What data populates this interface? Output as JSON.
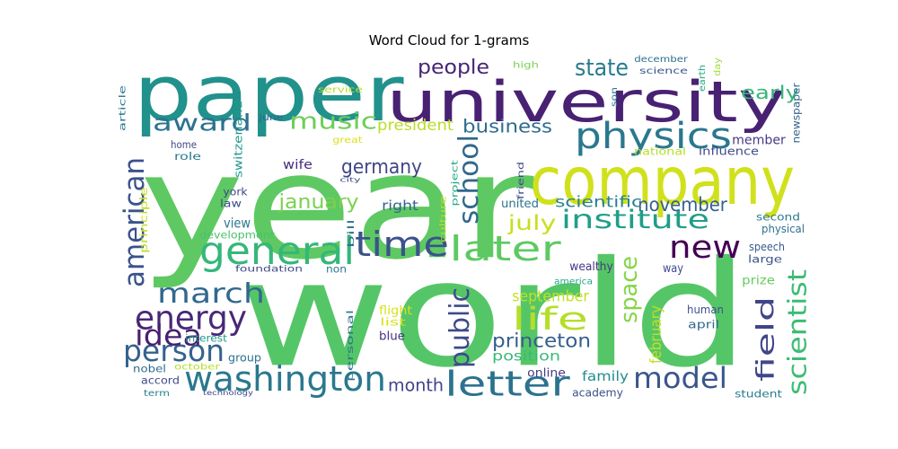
{
  "chart_data": {
    "type": "wordcloud",
    "title": "Word Cloud for 1-grams",
    "colormap": "viridis",
    "background": "#ffffff",
    "words": [
      {
        "text": "year",
        "color": "#5ec962"
      },
      {
        "text": "world",
        "color": "#55c667"
      },
      {
        "text": "paper",
        "color": "#21918c"
      },
      {
        "text": "university",
        "color": "#482173"
      },
      {
        "text": "company",
        "color": "#d0e11c"
      },
      {
        "text": "physics",
        "color": "#2a788e"
      },
      {
        "text": "time",
        "color": "#3b528b"
      },
      {
        "text": "general",
        "color": "#35b779"
      },
      {
        "text": "later",
        "color": "#5ec962"
      },
      {
        "text": "washington",
        "color": "#2a788e"
      },
      {
        "text": "letter",
        "color": "#2c728e"
      },
      {
        "text": "new",
        "color": "#440154"
      },
      {
        "text": "institute",
        "color": "#1f9e89"
      },
      {
        "text": "state",
        "color": "#287c8e"
      },
      {
        "text": "life",
        "color": "#b5de2b"
      },
      {
        "text": "energy",
        "color": "#482878"
      },
      {
        "text": "march",
        "color": "#31688e"
      },
      {
        "text": "model",
        "color": "#39568c"
      },
      {
        "text": "field",
        "color": "#404688"
      },
      {
        "text": "scientist",
        "color": "#3dbc74"
      },
      {
        "text": "person",
        "color": "#33638d"
      },
      {
        "text": "idea",
        "color": "#481f70"
      },
      {
        "text": "public",
        "color": "#3e4a89"
      },
      {
        "text": "music",
        "color": "#6ece58"
      },
      {
        "text": "award",
        "color": "#2c728e"
      },
      {
        "text": "american",
        "color": "#3b528b"
      },
      {
        "text": "july",
        "color": "#c8e020"
      },
      {
        "text": "school",
        "color": "#31688e"
      },
      {
        "text": "space",
        "color": "#86d549"
      },
      {
        "text": "early",
        "color": "#35b779"
      },
      {
        "text": "people",
        "color": "#482475"
      },
      {
        "text": "germany",
        "color": "#3f4788"
      },
      {
        "text": "january",
        "color": "#7ad151"
      },
      {
        "text": "november",
        "color": "#34608d"
      },
      {
        "text": "business",
        "color": "#2f6c8e"
      },
      {
        "text": "princeton",
        "color": "#355f8d"
      },
      {
        "text": "month",
        "color": "#414487"
      },
      {
        "text": "february",
        "color": "#c2df23"
      },
      {
        "text": "president",
        "color": "#b8de29"
      },
      {
        "text": "scientific",
        "color": "#27808e"
      },
      {
        "text": "september",
        "color": "#c2df23"
      },
      {
        "text": "member",
        "color": "#443983"
      },
      {
        "text": "blue",
        "color": "#46327e"
      },
      {
        "text": "view",
        "color": "#2a788e"
      },
      {
        "text": "right",
        "color": "#33638d"
      },
      {
        "text": "wife",
        "color": "#472d7b"
      },
      {
        "text": "position",
        "color": "#38b977"
      },
      {
        "text": "flight",
        "color": "#d8e219"
      },
      {
        "text": "family",
        "color": "#218f8d"
      },
      {
        "text": "united",
        "color": "#2c728e"
      },
      {
        "text": "second",
        "color": "#2a788e"
      },
      {
        "text": "physical",
        "color": "#2c728e"
      },
      {
        "text": "speech",
        "color": "#38598c"
      },
      {
        "text": "large",
        "color": "#3b528b"
      },
      {
        "text": "prize",
        "color": "#65cb5e"
      },
      {
        "text": "human",
        "color": "#3b528b"
      },
      {
        "text": "april",
        "color": "#31688e"
      },
      {
        "text": "academy",
        "color": "#3b528b"
      },
      {
        "text": "student",
        "color": "#287c8e"
      },
      {
        "text": "online",
        "color": "#443a83"
      },
      {
        "text": "america",
        "color": "#22a785"
      },
      {
        "text": "wealthy",
        "color": "#453781"
      },
      {
        "text": "way",
        "color": "#3e4989"
      },
      {
        "text": "accord",
        "color": "#3e4989"
      },
      {
        "text": "group",
        "color": "#2e6f8e"
      },
      {
        "text": "nobel",
        "color": "#2f6c8e"
      },
      {
        "text": "term",
        "color": "#27808e"
      },
      {
        "text": "october",
        "color": "#b5de2b"
      },
      {
        "text": "interest",
        "color": "#1f968b"
      },
      {
        "text": "technology",
        "color": "#3e4989"
      },
      {
        "text": "list",
        "color": "#d8e219"
      },
      {
        "text": "personal",
        "color": "#2c728e"
      },
      {
        "text": "foundation",
        "color": "#3e4989"
      },
      {
        "text": "non",
        "color": "#2a788e"
      },
      {
        "text": "bill",
        "color": "#2c728e"
      },
      {
        "text": "development",
        "color": "#4ac16d"
      },
      {
        "text": "law",
        "color": "#3e4989"
      },
      {
        "text": "york",
        "color": "#414487"
      },
      {
        "text": "principle",
        "color": "#c2df23"
      },
      {
        "text": "role",
        "color": "#2a788e"
      },
      {
        "text": "home",
        "color": "#3e4989"
      },
      {
        "text": "switzerland",
        "color": "#1f9a8a"
      },
      {
        "text": "june",
        "color": "#34608d"
      },
      {
        "text": "great",
        "color": "#d8e219"
      },
      {
        "text": "service",
        "color": "#b5de2b"
      },
      {
        "text": "article",
        "color": "#2a788e"
      },
      {
        "text": "high",
        "color": "#7ad151"
      },
      {
        "text": "december",
        "color": "#2c728e"
      },
      {
        "text": "science",
        "color": "#39568c"
      },
      {
        "text": "earth",
        "color": "#22a785"
      },
      {
        "text": "day",
        "color": "#a0da39"
      },
      {
        "text": "son",
        "color": "#2a788e"
      },
      {
        "text": "newspaper",
        "color": "#33638d"
      },
      {
        "text": "influence",
        "color": "#3e4a89"
      },
      {
        "text": "national",
        "color": "#b5de2b"
      },
      {
        "text": "friend",
        "color": "#3e4989"
      },
      {
        "text": "culture",
        "color": "#b5de2b"
      },
      {
        "text": "project",
        "color": "#22a785"
      },
      {
        "text": "city",
        "color": "#3e4989"
      }
    ]
  }
}
